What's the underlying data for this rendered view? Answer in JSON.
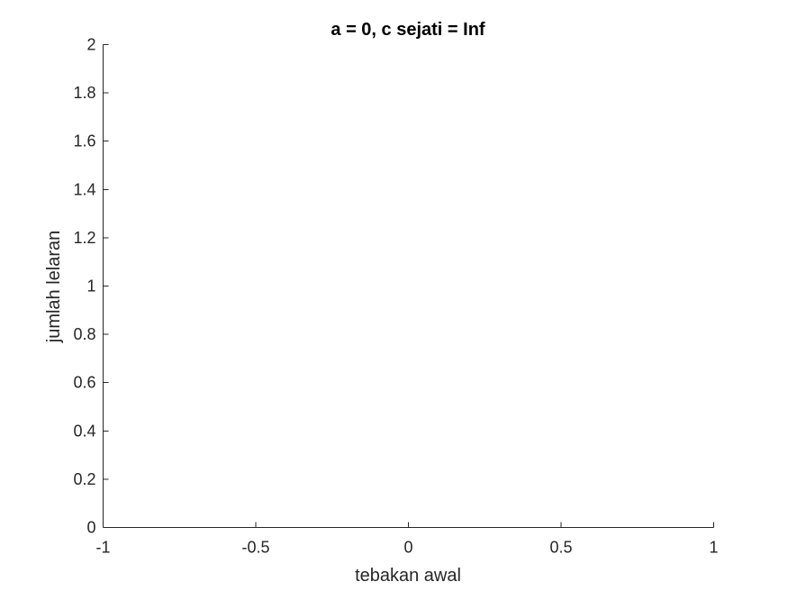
{
  "chart_data": {
    "type": "line",
    "title": "a = 0, c sejati = Inf",
    "xlabel": "tebakan awal",
    "ylabel": "jumlah lelaran",
    "xlim": [
      -1,
      1
    ],
    "ylim": [
      0,
      2
    ],
    "x_ticks": [
      -1,
      -0.5,
      0,
      0.5,
      1
    ],
    "x_tick_labels": [
      "-1",
      "-0.5",
      "0",
      "0.5",
      "1"
    ],
    "y_ticks": [
      0,
      0.2,
      0.4,
      0.6,
      0.8,
      1,
      1.2,
      1.4,
      1.6,
      1.8,
      2
    ],
    "y_tick_labels": [
      "0",
      "0.2",
      "0.4",
      "0.6",
      "0.8",
      "1",
      "1.2",
      "1.4",
      "1.6",
      "1.8",
      "2"
    ],
    "series": [],
    "grid": false,
    "box": false,
    "colors": {
      "axis": "#262626",
      "title": "#000000",
      "background": "#ffffff"
    }
  }
}
